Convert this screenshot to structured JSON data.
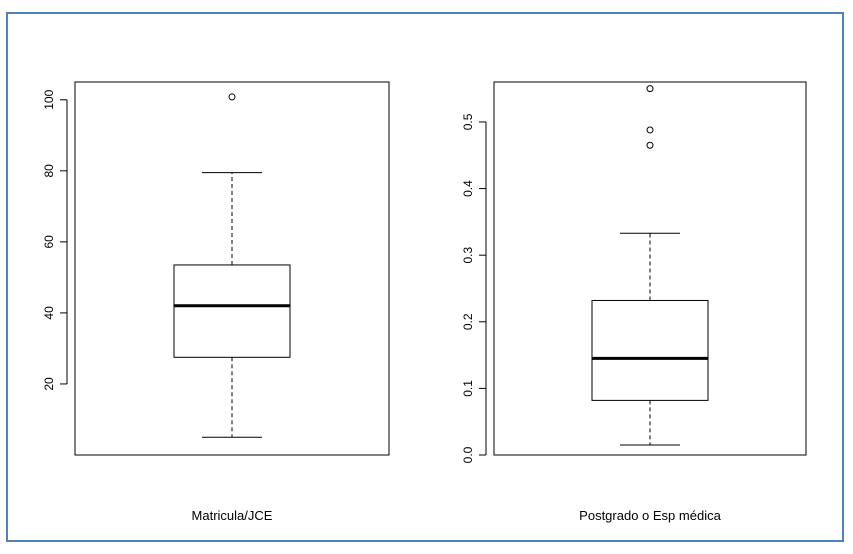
{
  "frame": {
    "border_color": "#4f81bd"
  },
  "chart_data": [
    {
      "type": "boxplot",
      "xlabel": "Matricula/JCE",
      "ylim": [
        0,
        105
      ],
      "yticks": [
        20,
        40,
        60,
        80,
        100
      ],
      "ytick_labels": [
        "20",
        "40",
        "60",
        "80",
        "100"
      ],
      "grid": false,
      "box": {
        "whisker_low": 5,
        "q1": 27.5,
        "median": 42,
        "q3": 53.5,
        "whisker_high": 79.5
      },
      "outliers": [
        100.8
      ]
    },
    {
      "type": "boxplot",
      "xlabel": "Postgrado o Esp médica",
      "ylim": [
        0.0,
        0.56
      ],
      "yticks": [
        0.0,
        0.1,
        0.2,
        0.3,
        0.4,
        0.5
      ],
      "ytick_labels": [
        "0.0",
        "0.1",
        "0.2",
        "0.3",
        "0.4",
        "0.5"
      ],
      "grid": false,
      "box": {
        "whisker_low": 0.015,
        "q1": 0.082,
        "median": 0.145,
        "q3": 0.232,
        "whisker_high": 0.333
      },
      "outliers": [
        0.465,
        0.488,
        0.55
      ]
    }
  ]
}
